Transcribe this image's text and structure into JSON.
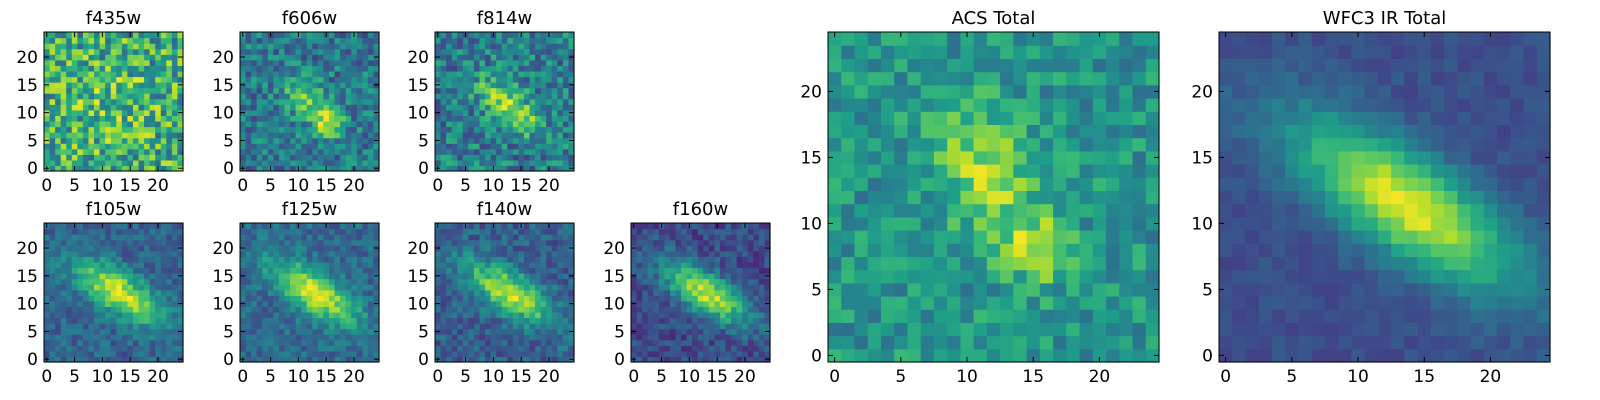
{
  "chart_data": [
    {
      "type": "heatmap",
      "title": "f435w",
      "xlim": [
        0,
        24
      ],
      "ylim": [
        0,
        24
      ],
      "xticks": [
        "0",
        "5",
        "10",
        "15",
        "20"
      ],
      "yticks": [
        "0",
        "5",
        "10",
        "15",
        "20"
      ],
      "colormap": "viridis",
      "blob": {
        "kind": "noise",
        "cx": 12,
        "cy": 12,
        "sx": 5,
        "sy": 5,
        "rho": 0,
        "amp": 0.1,
        "base": 0.62,
        "noise": 0.3
      }
    },
    {
      "type": "heatmap",
      "title": "f606w",
      "xlim": [
        0,
        24
      ],
      "ylim": [
        0,
        24
      ],
      "xticks": [
        "0",
        "5",
        "10",
        "15",
        "20"
      ],
      "yticks": [
        "0",
        "5",
        "10",
        "15",
        "20"
      ],
      "colormap": "viridis",
      "blob": {
        "kind": "twin",
        "cx": 12,
        "cy": 12,
        "sx": 3.5,
        "sy": 3,
        "rho": -0.5,
        "amp": 0.35,
        "base": 0.4,
        "noise": 0.2,
        "peak": [
          15.5,
          8
        ],
        "peak_amp": 0.45
      }
    },
    {
      "type": "heatmap",
      "title": "f814w",
      "xlim": [
        0,
        24
      ],
      "ylim": [
        0,
        24
      ],
      "xticks": [
        "0",
        "5",
        "10",
        "15",
        "20"
      ],
      "yticks": [
        "0",
        "5",
        "10",
        "15",
        "20"
      ],
      "colormap": "viridis",
      "blob": {
        "kind": "twin",
        "cx": 12,
        "cy": 12,
        "sx": 3.5,
        "sy": 3,
        "rho": -0.5,
        "amp": 0.4,
        "base": 0.42,
        "noise": 0.22,
        "peak": [
          15.5,
          8
        ],
        "peak_amp": 0.3
      }
    },
    {
      "type": "heatmap",
      "title": "f105w",
      "xlim": [
        0,
        24
      ],
      "ylim": [
        0,
        24
      ],
      "xticks": [
        "0",
        "5",
        "10",
        "15",
        "20"
      ],
      "yticks": [
        "0",
        "5",
        "10",
        "15",
        "20"
      ],
      "colormap": "viridis",
      "blob": {
        "kind": "ellipse",
        "cx": 13,
        "cy": 12,
        "sx": 5.5,
        "sy": 4,
        "rho": -0.7,
        "amp": 0.62,
        "base": 0.32,
        "noise": 0.12
      }
    },
    {
      "type": "heatmap",
      "title": "f125w",
      "xlim": [
        0,
        24
      ],
      "ylim": [
        0,
        24
      ],
      "xticks": [
        "0",
        "5",
        "10",
        "15",
        "20"
      ],
      "yticks": [
        "0",
        "5",
        "10",
        "15",
        "20"
      ],
      "colormap": "viridis",
      "blob": {
        "kind": "ellipse",
        "cx": 13,
        "cy": 12,
        "sx": 5.5,
        "sy": 4,
        "rho": -0.7,
        "amp": 0.6,
        "base": 0.34,
        "noise": 0.12
      }
    },
    {
      "type": "heatmap",
      "title": "f140w",
      "xlim": [
        0,
        24
      ],
      "ylim": [
        0,
        24
      ],
      "xticks": [
        "0",
        "5",
        "10",
        "15",
        "20"
      ],
      "yticks": [
        "0",
        "5",
        "10",
        "15",
        "20"
      ],
      "colormap": "viridis",
      "blob": {
        "kind": "ellipse",
        "cx": 13,
        "cy": 12,
        "sx": 5.5,
        "sy": 4,
        "rho": -0.7,
        "amp": 0.6,
        "base": 0.3,
        "noise": 0.13
      }
    },
    {
      "type": "heatmap",
      "title": "f160w",
      "xlim": [
        0,
        24
      ],
      "ylim": [
        0,
        24
      ],
      "xticks": [
        "0",
        "5",
        "10",
        "15",
        "20"
      ],
      "yticks": [
        "0",
        "5",
        "10",
        "15",
        "20"
      ],
      "colormap": "viridis",
      "blob": {
        "kind": "ellipse",
        "cx": 13,
        "cy": 12,
        "sx": 5.5,
        "sy": 4,
        "rho": -0.7,
        "amp": 0.68,
        "base": 0.22,
        "noise": 0.12
      }
    },
    {
      "type": "heatmap",
      "title": "ACS Total",
      "xlim": [
        0,
        24
      ],
      "ylim": [
        0,
        24
      ],
      "xticks": [
        "0",
        "5",
        "10",
        "15",
        "20"
      ],
      "yticks": [
        "0",
        "5",
        "10",
        "15",
        "20"
      ],
      "colormap": "viridis",
      "blob": {
        "kind": "twin",
        "cx": 11.5,
        "cy": 14,
        "sx": 2.5,
        "sy": 3.5,
        "rho": -0.3,
        "amp": 0.35,
        "base": 0.52,
        "noise": 0.16,
        "peak": [
          15.5,
          8
        ],
        "peak_amp": 0.4
      }
    },
    {
      "type": "heatmap",
      "title": "WFC3 IR Total",
      "xlim": [
        0,
        24
      ],
      "ylim": [
        0,
        24
      ],
      "xticks": [
        "0",
        "5",
        "10",
        "15",
        "20"
      ],
      "yticks": [
        "0",
        "5",
        "10",
        "15",
        "20"
      ],
      "colormap": "viridis",
      "blob": {
        "kind": "ellipse",
        "cx": 13.5,
        "cy": 11.5,
        "sx": 6,
        "sy": 4.5,
        "rho": -0.75,
        "amp": 0.72,
        "base": 0.24,
        "noise": 0.05
      }
    }
  ]
}
